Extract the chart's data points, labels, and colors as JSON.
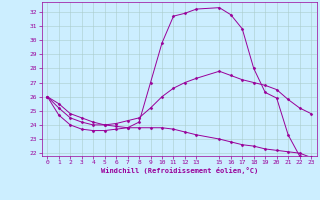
{
  "title": "Windchill (Refroidissement éolien,°C)",
  "bg_color": "#cceeff",
  "line_color": "#990099",
  "grid_color": "#aacccc",
  "xlim": [
    -0.5,
    23.5
  ],
  "ylim": [
    21.8,
    32.7
  ],
  "yticks": [
    22,
    23,
    24,
    25,
    26,
    27,
    28,
    29,
    30,
    31,
    32
  ],
  "xticks": [
    0,
    1,
    2,
    3,
    4,
    5,
    6,
    7,
    8,
    9,
    10,
    11,
    12,
    13,
    15,
    16,
    17,
    18,
    19,
    20,
    21,
    22,
    23
  ],
  "xtick_labels": [
    "0",
    "1",
    "2",
    "3",
    "4",
    "5",
    "6",
    "7",
    "8",
    "9",
    "10",
    "11",
    "12",
    "13",
    "15",
    "16",
    "17",
    "18",
    "19",
    "20",
    "21",
    "22",
    "23"
  ],
  "curves": [
    {
      "x": [
        0,
        1,
        2,
        3,
        4,
        5,
        6,
        7,
        8,
        9,
        10,
        11,
        12,
        13,
        15,
        16,
        17,
        18,
        19,
        20,
        21,
        22,
        23
      ],
      "y": [
        26.0,
        24.7,
        24.0,
        23.7,
        23.6,
        23.6,
        23.7,
        23.8,
        24.2,
        27.0,
        29.8,
        31.7,
        31.9,
        32.2,
        32.3,
        31.8,
        30.8,
        28.0,
        26.3,
        25.9,
        23.3,
        21.8,
        21.6
      ]
    },
    {
      "x": [
        0,
        1,
        2,
        3,
        4,
        5,
        6,
        7,
        8,
        9,
        10,
        11,
        12,
        13,
        15,
        16,
        17,
        18,
        19,
        20,
        21,
        22,
        23
      ],
      "y": [
        26.0,
        25.2,
        24.5,
        24.2,
        24.0,
        24.0,
        24.1,
        24.3,
        24.5,
        25.2,
        26.0,
        26.6,
        27.0,
        27.3,
        27.8,
        27.5,
        27.2,
        27.0,
        26.8,
        26.5,
        25.8,
        25.2,
        24.8
      ]
    },
    {
      "x": [
        0,
        1,
        2,
        3,
        4,
        5,
        6,
        7,
        8,
        9,
        10,
        11,
        12,
        13,
        15,
        16,
        17,
        18,
        19,
        20,
        21,
        22,
        23
      ],
      "y": [
        26.0,
        25.5,
        24.8,
        24.5,
        24.2,
        24.0,
        23.9,
        23.8,
        23.8,
        23.8,
        23.8,
        23.7,
        23.5,
        23.3,
        23.0,
        22.8,
        22.6,
        22.5,
        22.3,
        22.2,
        22.1,
        22.0,
        21.7
      ]
    }
  ],
  "figsize": [
    3.2,
    2.0
  ],
  "dpi": 100
}
